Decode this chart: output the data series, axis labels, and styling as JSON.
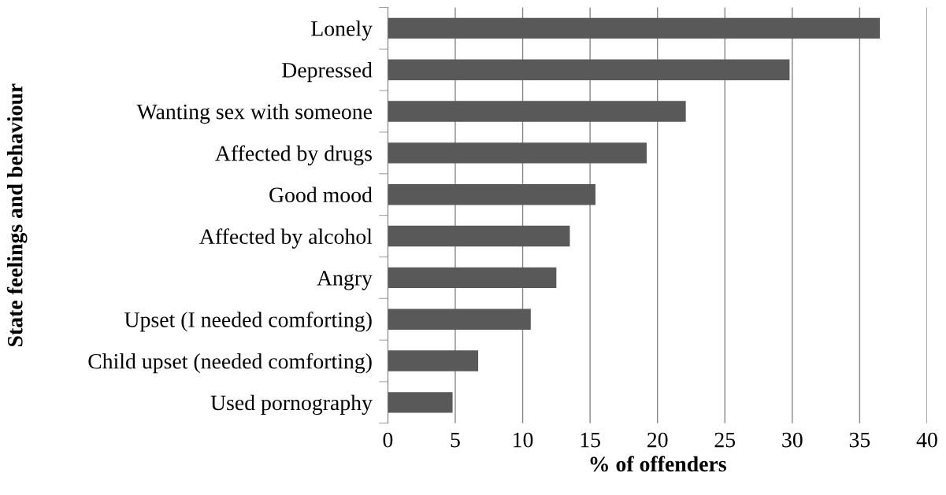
{
  "chart_data": {
    "type": "bar",
    "orientation": "horizontal",
    "categories": [
      "Lonely",
      "Depressed",
      "Wanting sex with someone",
      "Affected by drugs",
      "Good mood",
      "Affected by alcohol",
      "Angry",
      "Upset (I needed comforting)",
      "Child upset (needed comforting)",
      "Used pornography"
    ],
    "values": [
      36.5,
      29.8,
      22.1,
      19.2,
      15.4,
      13.5,
      12.5,
      10.6,
      6.7,
      4.8
    ],
    "color": "#595959",
    "xlabel": "% of offenders",
    "ylabel": "State feelings and behaviour",
    "xlim": [
      0,
      40
    ],
    "xticks": [
      0,
      5,
      10,
      15,
      20,
      25,
      30,
      35,
      40
    ],
    "grid": "x"
  }
}
